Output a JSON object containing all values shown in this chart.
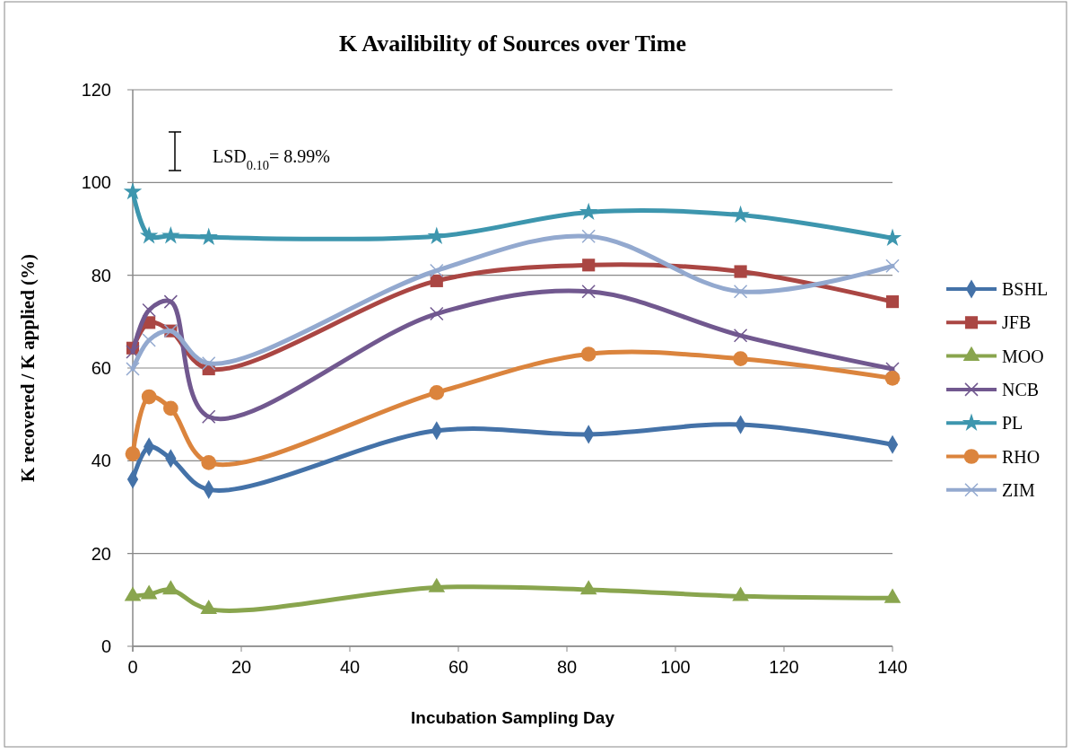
{
  "chart_data": {
    "type": "line",
    "title": "K Availibility of Sources over Time",
    "xlabel": "Incubation Sampling Day",
    "ylabel": "K recovered / K applied (%)",
    "x": [
      0,
      3,
      7,
      14,
      56,
      84,
      112,
      140
    ],
    "xlim": [
      0,
      140
    ],
    "xticks": [
      0,
      20,
      40,
      60,
      80,
      100,
      120,
      140
    ],
    "ylim": [
      0,
      120
    ],
    "yticks": [
      0,
      20,
      40,
      60,
      80,
      100,
      120
    ],
    "grid": "y",
    "legend": "right",
    "annotations": [
      "LSD$_{0.10}$= 8.99%"
    ],
    "series": [
      {
        "name": "BSHL",
        "color": "#4472a8",
        "marker": "diamond",
        "values": [
          36,
          43,
          40.5,
          33.8,
          46.5,
          45.7,
          47.8,
          43.5
        ]
      },
      {
        "name": "JFB",
        "color": "#aa4643",
        "marker": "square",
        "values": [
          64.3,
          69.8,
          68,
          59.8,
          78.8,
          82.2,
          80.8,
          74.3
        ]
      },
      {
        "name": "MOO",
        "color": "#89a54e",
        "marker": "triangle",
        "values": [
          10.8,
          11.2,
          12.2,
          8,
          12.7,
          12.2,
          10.8,
          10.4
        ]
      },
      {
        "name": "NCB",
        "color": "#71588f",
        "marker": "cross",
        "values": [
          63.5,
          72.5,
          74.3,
          49.5,
          71.7,
          76.5,
          67,
          59.8
        ]
      },
      {
        "name": "PL",
        "color": "#3d96ae",
        "marker": "star",
        "values": [
          98,
          88.5,
          88.5,
          88.2,
          88.4,
          93.6,
          93,
          88
        ]
      },
      {
        "name": "RHO",
        "color": "#db843d",
        "marker": "circle",
        "values": [
          41.5,
          53.8,
          51.3,
          39.6,
          54.7,
          63,
          62,
          57.8
        ]
      },
      {
        "name": "ZIM",
        "color": "#93a9cf",
        "marker": "cross",
        "values": [
          59.8,
          66,
          68,
          61,
          81,
          88.4,
          76.5,
          82
        ]
      }
    ]
  }
}
